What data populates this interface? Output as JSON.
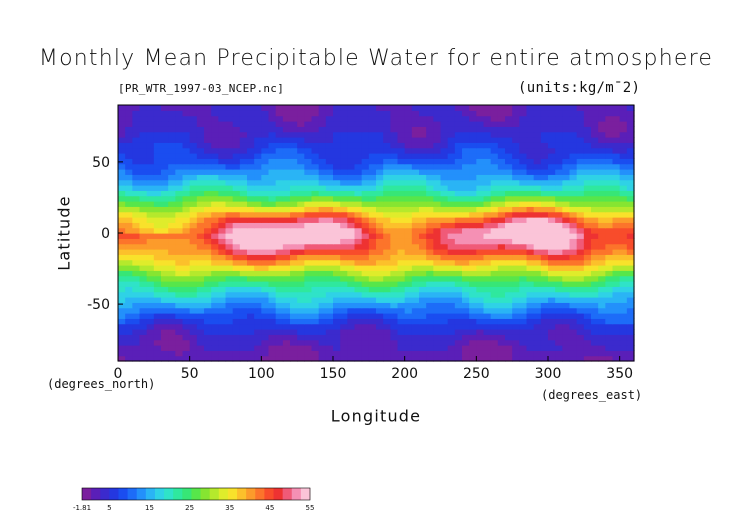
{
  "chart_data": {
    "type": "heatmap",
    "title": "Monthly Mean Precipitable Water for entire atmosphere",
    "subtitle": "[PR_WTR_1997-03_NCEP.nc]",
    "units_label": "(units:kg/m¯2)",
    "xlabel": "Longitude",
    "ylabel": "Latitude",
    "x_unit_label": "(degrees_east)",
    "y_unit_label": "(degrees_north)",
    "xlim": [
      0,
      360
    ],
    "ylim": [
      -90,
      90
    ],
    "xticks": [
      0,
      50,
      100,
      150,
      200,
      250,
      300,
      350
    ],
    "yticks": [
      -50,
      0,
      50
    ],
    "colorbar": {
      "levels": [
        -1.81,
        5,
        15,
        25,
        35,
        45,
        55
      ],
      "tick_labels": [
        "-1.81",
        "5",
        "15",
        "25",
        "35",
        "45",
        "55"
      ],
      "colors": [
        "#7a1f9e",
        "#5a1fb8",
        "#3b2acd",
        "#2437e0",
        "#1a4df0",
        "#1d6cf8",
        "#2390fb",
        "#2ab4f5",
        "#2fd2e6",
        "#2fe3c8",
        "#2fe89e",
        "#37e676",
        "#57e64a",
        "#86e531",
        "#b5e92c",
        "#dfec2b",
        "#f8e22b",
        "#fcc02b",
        "#fc9b2b",
        "#fc742b",
        "#f84c2b",
        "#ee3232",
        "#f05a78",
        "#f590b4",
        "#fbc4d8"
      ]
    },
    "zonal_mean_profile": {
      "latitude": [
        -90,
        -80,
        -70,
        -60,
        -50,
        -40,
        -30,
        -20,
        -10,
        0,
        10,
        20,
        30,
        40,
        50,
        60,
        70,
        80,
        90
      ],
      "value": [
        1,
        2,
        4,
        8,
        14,
        20,
        28,
        38,
        46,
        50,
        42,
        30,
        20,
        14,
        9,
        6,
        4,
        3,
        2
      ]
    }
  }
}
